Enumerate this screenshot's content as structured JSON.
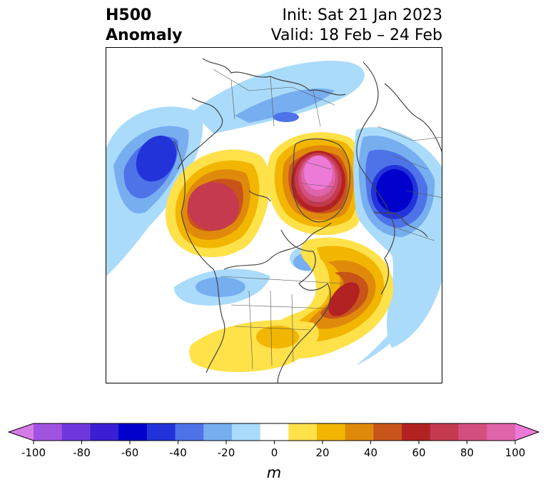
{
  "title": {
    "left_line1": "H500",
    "left_line2": "Anomaly",
    "init": "Init: Sat 21 Jan 2023",
    "valid": "Valid: 18 Feb – 24 Feb"
  },
  "colorbar": {
    "unit": "m",
    "min": -100,
    "max": 100,
    "ticks": [
      "-100",
      "-80",
      "-60",
      "-40",
      "-20",
      "0",
      "20",
      "40",
      "60",
      "80",
      "100"
    ],
    "colors": [
      "#d67ae8",
      "#a053df",
      "#7038dc",
      "#3b1ed2",
      "#0000cc",
      "#2234d9",
      "#4e73e8",
      "#77aef0",
      "#aadbfb",
      "#ffffff",
      "#ffe14a",
      "#f2b601",
      "#e08a0b",
      "#c8541a",
      "#b32222",
      "#c53a4e",
      "#d2507e",
      "#df64aa",
      "#ee7ad8"
    ]
  }
}
